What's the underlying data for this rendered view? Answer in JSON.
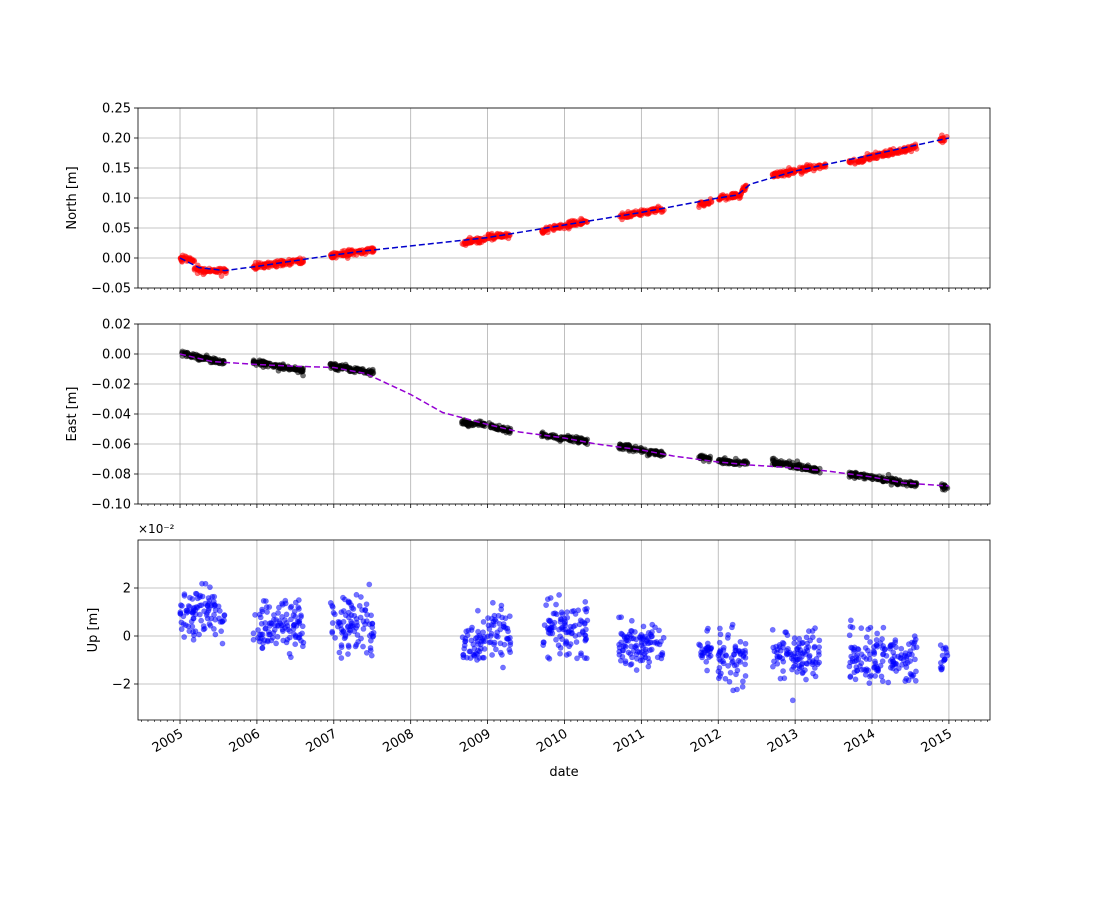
{
  "chart_data": [
    {
      "type": "scatter",
      "panel": "north",
      "ylabel": "North [m]",
      "xlim": [
        "2004-06-15",
        "2015-07-15"
      ],
      "ylim": [
        -0.05,
        0.25
      ],
      "yticks": [
        -0.05,
        0.0,
        0.05,
        0.1,
        0.15,
        0.2,
        0.25
      ],
      "ytick_labels": [
        "−0.05",
        "0.00",
        "0.05",
        "0.10",
        "0.15",
        "0.20",
        "0.25"
      ],
      "grid": true,
      "series": [
        {
          "style": "points",
          "color": "#ff0000",
          "clusters": [
            {
              "start": "2005-01-01",
              "end": "2005-03-10",
              "y0": 0.0,
              "y1": -0.002
            },
            {
              "start": "2005-03-10",
              "end": "2005-08-10",
              "y0": -0.02,
              "y1": -0.022
            },
            {
              "start": "2005-12-15",
              "end": "2006-08-10",
              "y0": -0.014,
              "y1": -0.004
            },
            {
              "start": "2006-12-15",
              "end": "2007-07-10",
              "y0": 0.004,
              "y1": 0.014
            },
            {
              "start": "2008-09-01",
              "end": "2008-12-20",
              "y0": 0.025,
              "y1": 0.03
            },
            {
              "start": "2009-01-01",
              "end": "2009-04-20",
              "y0": 0.034,
              "y1": 0.04
            },
            {
              "start": "2009-09-15",
              "end": "2010-04-20",
              "y0": 0.046,
              "y1": 0.062
            },
            {
              "start": "2010-09-15",
              "end": "2011-04-20",
              "y0": 0.068,
              "y1": 0.082
            },
            {
              "start": "2011-10-01",
              "end": "2011-12-01",
              "y0": 0.09,
              "y1": 0.092
            },
            {
              "start": "2012-01-01",
              "end": "2012-04-20",
              "y0": 0.1,
              "y1": 0.105
            },
            {
              "start": "2012-04-20",
              "end": "2012-05-20",
              "y0": 0.11,
              "y1": 0.125
            },
            {
              "start": "2012-09-15",
              "end": "2013-06-01",
              "y0": 0.138,
              "y1": 0.155
            },
            {
              "start": "2013-09-15",
              "end": "2014-08-01",
              "y0": 0.16,
              "y1": 0.185
            },
            {
              "start": "2014-11-20",
              "end": "2014-12-25",
              "y0": 0.196,
              "y1": 0.2
            }
          ]
        },
        {
          "style": "dashed-line",
          "color": "#0000cc",
          "x": [
            "2005-01-01",
            "2005-04-01",
            "2005-08-01",
            "2006-01-01",
            "2006-06-01",
            "2007-01-01",
            "2007-06-01",
            "2009-01-01",
            "2010-01-01",
            "2011-01-01",
            "2012-01-01",
            "2012-04-01",
            "2012-06-01",
            "2013-01-01",
            "2014-01-01",
            "2015-01-01"
          ],
          "y": [
            0.0,
            -0.016,
            -0.021,
            -0.014,
            -0.006,
            0.005,
            0.012,
            0.034,
            0.055,
            0.076,
            0.1,
            0.105,
            0.123,
            0.145,
            0.172,
            0.2
          ]
        }
      ]
    },
    {
      "type": "scatter",
      "panel": "east",
      "ylabel": "East [m]",
      "xlim": [
        "2004-06-15",
        "2015-07-15"
      ],
      "ylim": [
        -0.1,
        0.02
      ],
      "yticks": [
        -0.1,
        -0.08,
        -0.06,
        -0.04,
        -0.02,
        0.0,
        0.02
      ],
      "ytick_labels": [
        "−0.10",
        "−0.08",
        "−0.06",
        "−0.04",
        "−0.02",
        "0.00",
        "0.02"
      ],
      "grid": true,
      "series": [
        {
          "style": "points",
          "color": "#000000",
          "clusters": [
            {
              "start": "2005-01-01",
              "end": "2005-08-01",
              "y0": 0.001,
              "y1": -0.006
            },
            {
              "start": "2005-12-15",
              "end": "2006-08-10",
              "y0": -0.005,
              "y1": -0.011
            },
            {
              "start": "2006-12-15",
              "end": "2007-07-10",
              "y0": -0.008,
              "y1": -0.012
            },
            {
              "start": "2008-09-01",
              "end": "2008-12-20",
              "y0": -0.046,
              "y1": -0.047
            },
            {
              "start": "2009-01-01",
              "end": "2009-04-20",
              "y0": -0.048,
              "y1": -0.051
            },
            {
              "start": "2009-09-15",
              "end": "2010-04-20",
              "y0": -0.054,
              "y1": -0.058
            },
            {
              "start": "2010-09-15",
              "end": "2011-04-20",
              "y0": -0.061,
              "y1": -0.067
            },
            {
              "start": "2011-10-01",
              "end": "2011-12-01",
              "y0": -0.069,
              "y1": -0.07
            },
            {
              "start": "2012-01-01",
              "end": "2012-05-20",
              "y0": -0.071,
              "y1": -0.073
            },
            {
              "start": "2012-09-15",
              "end": "2013-05-01",
              "y0": -0.072,
              "y1": -0.078
            },
            {
              "start": "2013-09-15",
              "end": "2014-08-01",
              "y0": -0.08,
              "y1": -0.087
            },
            {
              "start": "2014-11-20",
              "end": "2014-12-25",
              "y0": -0.088,
              "y1": -0.089
            }
          ]
        },
        {
          "style": "dashed-line",
          "color": "#9400d3",
          "x": [
            "2005-01-01",
            "2005-06-01",
            "2006-01-01",
            "2006-06-01",
            "2007-01-01",
            "2007-06-01",
            "2008-01-01",
            "2008-06-01",
            "2009-01-01",
            "2009-06-01",
            "2010-01-01",
            "2010-06-01",
            "2011-01-01",
            "2011-06-01",
            "2012-01-01",
            "2012-06-01",
            "2013-01-01",
            "2013-06-01",
            "2014-01-01",
            "2014-06-01",
            "2015-01-01"
          ],
          "y": [
            0.0,
            -0.005,
            -0.007,
            -0.008,
            -0.009,
            -0.013,
            -0.027,
            -0.039,
            -0.047,
            -0.052,
            -0.056,
            -0.06,
            -0.064,
            -0.068,
            -0.072,
            -0.074,
            -0.076,
            -0.078,
            -0.082,
            -0.086,
            -0.088
          ]
        }
      ]
    },
    {
      "type": "scatter",
      "panel": "up",
      "ylabel": "Up [m]",
      "xlabel": "date",
      "offset_label": "×10⁻²",
      "xlim": [
        "2004-06-15",
        "2015-07-15"
      ],
      "ylim": [
        -3.5,
        4.0
      ],
      "yticks": [
        -2,
        0,
        2
      ],
      "ytick_labels": [
        "−2",
        "0",
        "2"
      ],
      "grid": true,
      "xticks": [
        "2005-01-01",
        "2006-01-01",
        "2007-01-01",
        "2008-01-01",
        "2009-01-01",
        "2010-01-01",
        "2011-01-01",
        "2012-01-01",
        "2013-01-01",
        "2014-01-01",
        "2015-01-01"
      ],
      "xtick_labels": [
        "2005",
        "2006",
        "2007",
        "2008",
        "2009",
        "2010",
        "2011",
        "2012",
        "2013",
        "2014",
        "2015"
      ],
      "series": [
        {
          "style": "points",
          "color": "#0000ff",
          "clusters": [
            {
              "start": "2005-01-01",
              "end": "2005-08-01",
              "mean": 1.0,
              "spread": 0.8
            },
            {
              "start": "2005-12-15",
              "end": "2006-08-10",
              "mean": 0.4,
              "spread": 0.8
            },
            {
              "start": "2006-12-15",
              "end": "2007-07-10",
              "mean": 0.5,
              "spread": 0.9
            },
            {
              "start": "2008-09-01",
              "end": "2008-12-20",
              "mean": -0.4,
              "spread": 0.6
            },
            {
              "start": "2009-01-01",
              "end": "2009-04-20",
              "mean": 0.2,
              "spread": 0.8
            },
            {
              "start": "2009-09-15",
              "end": "2010-04-20",
              "mean": 0.3,
              "spread": 0.8
            },
            {
              "start": "2010-09-15",
              "end": "2011-04-20",
              "mean": -0.4,
              "spread": 0.7
            },
            {
              "start": "2011-10-01",
              "end": "2011-12-01",
              "mean": -0.6,
              "spread": 0.6
            },
            {
              "start": "2012-01-01",
              "end": "2012-05-20",
              "mean": -0.8,
              "spread": 0.8
            },
            {
              "start": "2012-09-15",
              "end": "2013-05-01",
              "mean": -0.8,
              "spread": 0.8
            },
            {
              "start": "2013-09-15",
              "end": "2014-08-01",
              "mean": -0.9,
              "spread": 0.8
            },
            {
              "start": "2014-11-20",
              "end": "2014-12-25",
              "mean": -1.0,
              "spread": 0.5
            }
          ]
        }
      ]
    }
  ]
}
